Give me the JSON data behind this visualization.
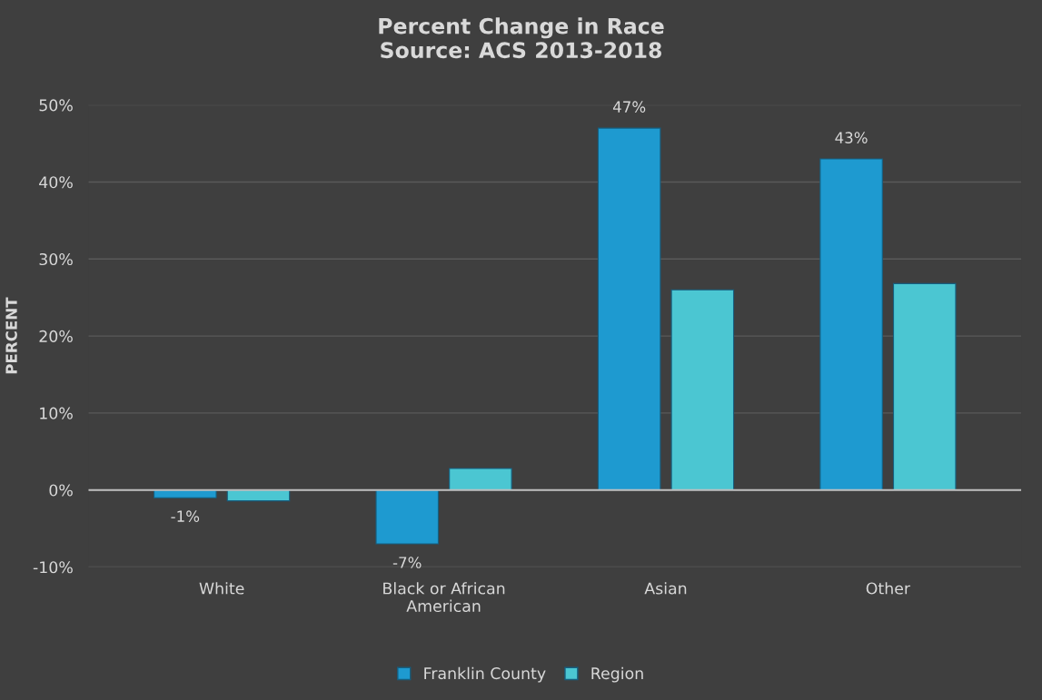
{
  "chart_data": {
    "type": "bar",
    "title": "Percent Change in Race\nSource: ACS 2013-2018",
    "ylabel": "PERCENT",
    "categories": [
      "White",
      "Black or African\nAmerican",
      "Asian",
      "Other"
    ],
    "series": [
      {
        "name": "Franklin County",
        "color": "#1e9ad0",
        "values": [
          -1,
          -7,
          47,
          43
        ],
        "value_labels": [
          "-1%",
          "-7%",
          "47%",
          "43%"
        ]
      },
      {
        "name": "Region",
        "color": "#4bc6d2",
        "values": [
          -1.4,
          2.8,
          26,
          26.8
        ]
      }
    ],
    "ylim": [
      -10,
      50
    ],
    "yticks": [
      {
        "value": -10,
        "label": "-10%"
      },
      {
        "value": 0,
        "label": "0%"
      },
      {
        "value": 10,
        "label": "10%"
      },
      {
        "value": 20,
        "label": "20%"
      },
      {
        "value": 30,
        "label": "30%"
      },
      {
        "value": 40,
        "label": "40%"
      },
      {
        "value": 50,
        "label": "50%"
      }
    ],
    "grid": "y",
    "legend": "bottom"
  }
}
